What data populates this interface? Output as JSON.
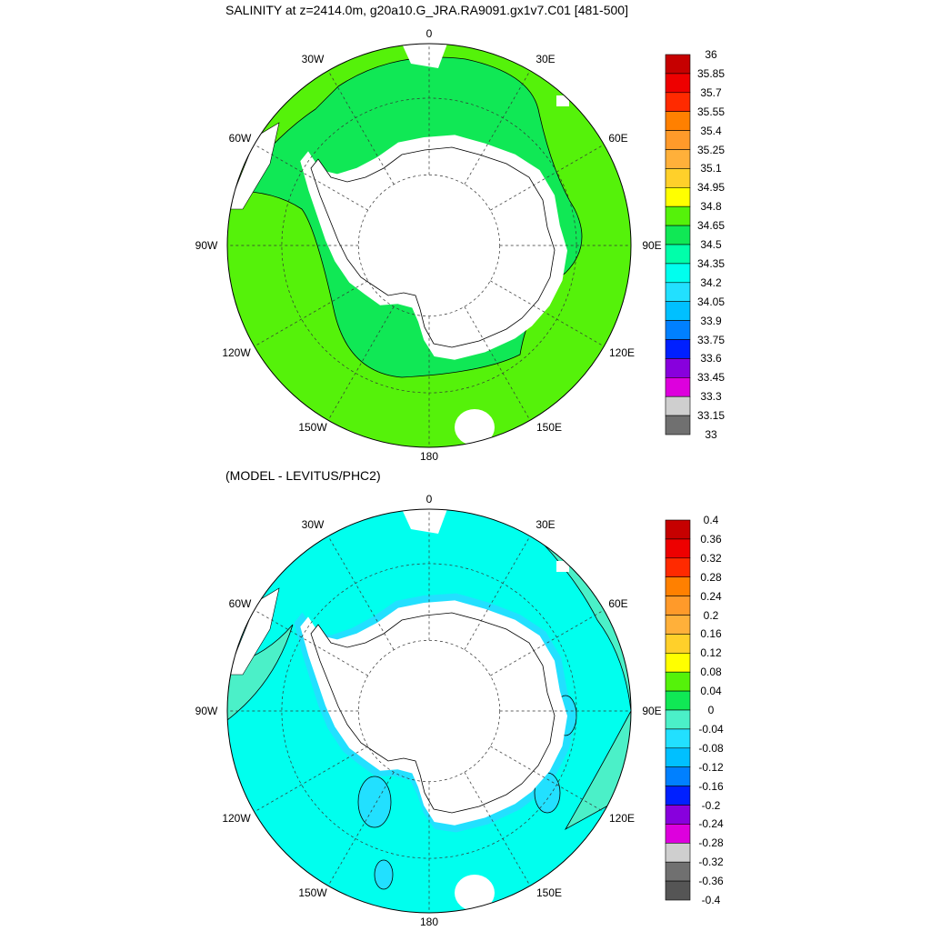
{
  "titles": {
    "top": "SALINITY at z=2414.0m, g20a10.G_JRA.RA9091.gx1v7.C01 [481-500]",
    "bottom": "(MODEL - LEVITUS/PHC2)"
  },
  "lon_labels": [
    "0",
    "30E",
    "60E",
    "90E",
    "120E",
    "150E",
    "180",
    "150W",
    "120W",
    "90W",
    "60W",
    "30W"
  ],
  "colors": {
    "land": "#ffffff",
    "green": "#55f20a",
    "cyan": "#00ffee",
    "teal": "#4bf0c8",
    "lightblue": "#22e0ff",
    "lime": "#10e855"
  },
  "maps": [
    {
      "name": "salinity",
      "ocean_color": "#55f20a",
      "patches": [
        {
          "fill": "#10e855",
          "kind": "band"
        }
      ]
    },
    {
      "name": "difference",
      "ocean_color": "#00ffee",
      "patches": [
        {
          "fill": "#4bf0c8",
          "kind": "band"
        },
        {
          "fill": "#22e0ff",
          "kind": "blob"
        }
      ]
    }
  ],
  "colorbars": [
    {
      "labels": [
        "36",
        "35.85",
        "35.7",
        "35.55",
        "35.4",
        "35.25",
        "35.1",
        "34.95",
        "34.8",
        "34.65",
        "34.5",
        "34.35",
        "34.2",
        "34.05",
        "33.9",
        "33.75",
        "33.6",
        "33.45",
        "33.3",
        "33.15",
        "33"
      ],
      "colors": [
        "#c60000",
        "#ee0000",
        "#ff2a00",
        "#ff8000",
        "#ff9a2a",
        "#ffb03a",
        "#ffd02a",
        "#ffff00",
        "#55f20a",
        "#10e855",
        "#00ffaa",
        "#00ffee",
        "#22e0ff",
        "#00c0ff",
        "#0080ff",
        "#0020ff",
        "#8800dd",
        "#dd00dd",
        "#cfcfcf",
        "#707070"
      ]
    },
    {
      "labels": [
        "0.4",
        "0.36",
        "0.32",
        "0.28",
        "0.24",
        "0.2",
        "0.16",
        "0.12",
        "0.08",
        "0.04",
        "0",
        "-0.04",
        "-0.08",
        "-0.12",
        "-0.16",
        "-0.2",
        "-0.24",
        "-0.28",
        "-0.32",
        "-0.36",
        "-0.4"
      ],
      "colors": [
        "#c60000",
        "#ee0000",
        "#ff2a00",
        "#ff8000",
        "#ff9a2a",
        "#ffb03a",
        "#ffd02a",
        "#ffff00",
        "#55f20a",
        "#10e855",
        "#4bf0c8",
        "#22e0ff",
        "#00c0ff",
        "#0080ff",
        "#0020ff",
        "#8800dd",
        "#dd00dd",
        "#cfcfcf",
        "#707070",
        "#555555"
      ]
    }
  ]
}
